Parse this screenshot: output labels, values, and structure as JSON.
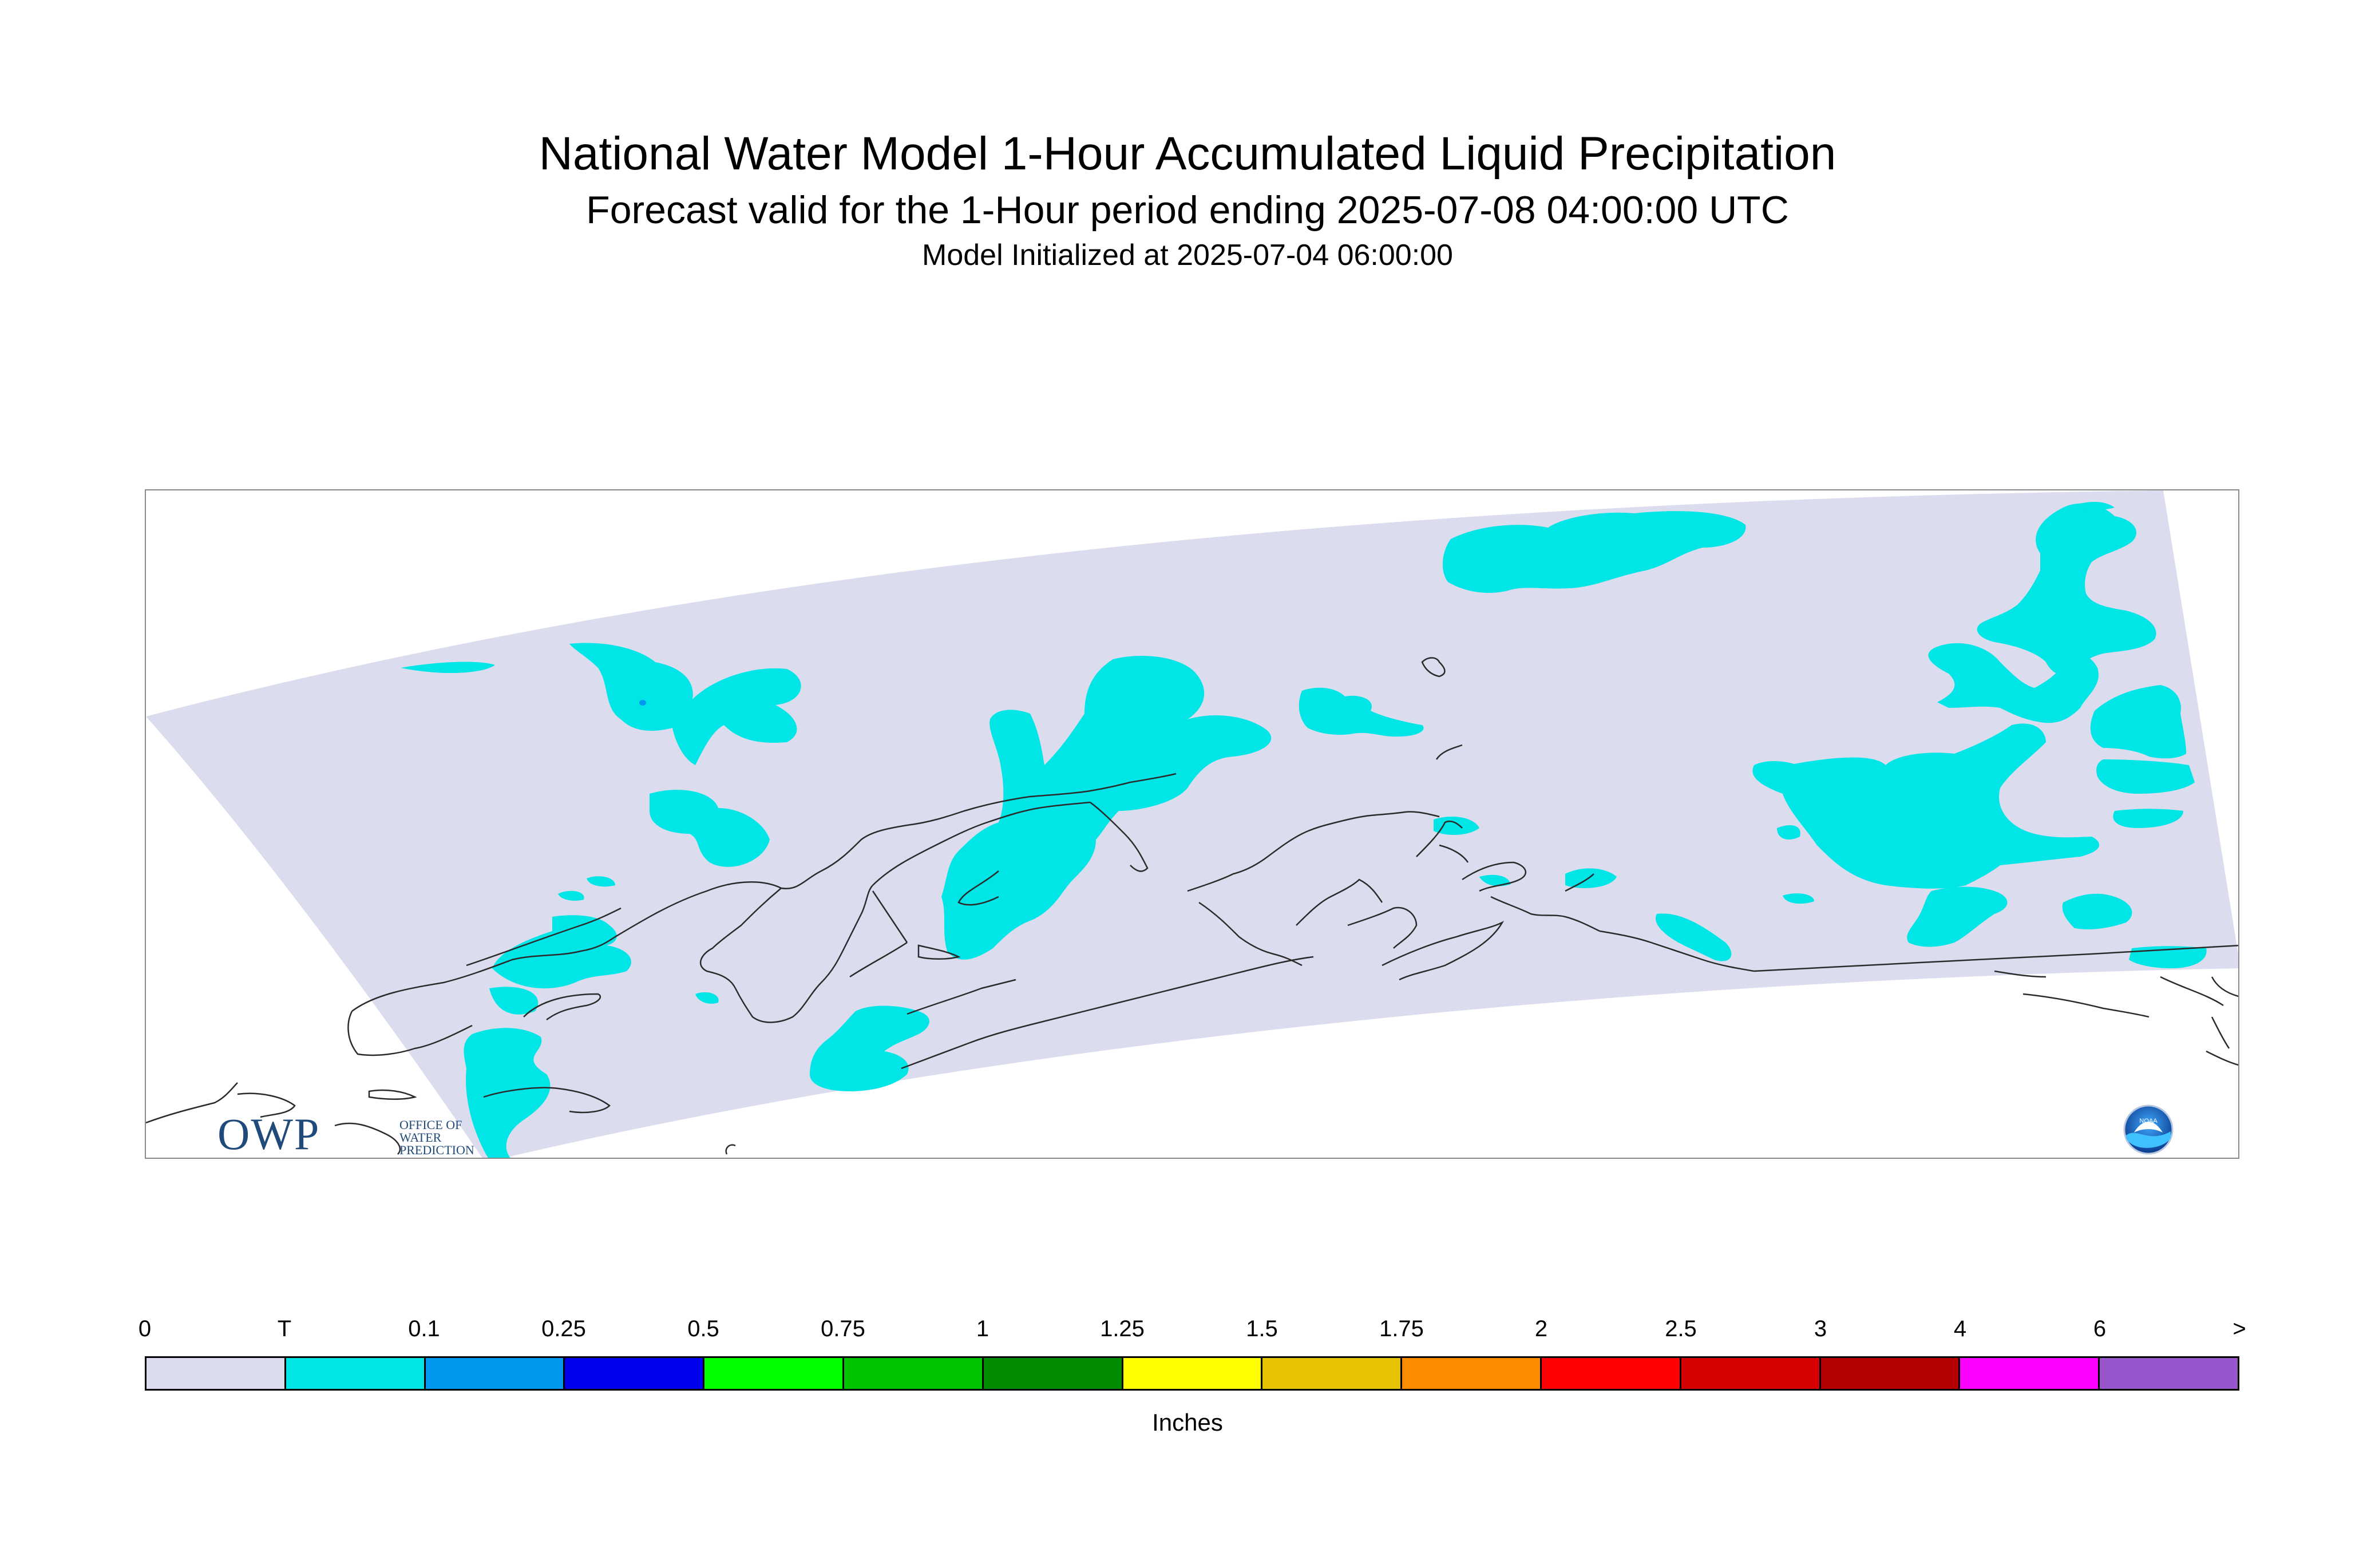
{
  "header": {
    "title": "National Water Model 1-Hour Accumulated Liquid Precipitation",
    "subtitle": "Forecast valid for the 1-Hour period ending 2025-07-08 04:00:00 UTC",
    "init": "Model Initialized at 2025-07-04 06:00:00"
  },
  "logos": {
    "owp_big": "OWP",
    "owp_small": [
      "OFFICE OF",
      "WATER",
      "PREDICTION"
    ],
    "noaa": "NOAA"
  },
  "colors": {
    "domain": "#dcdcef",
    "trace": "#00e5e5",
    "coast": "#2a2a2a"
  },
  "legend": {
    "ticks": [
      "0",
      "T",
      "0.1",
      "0.25",
      "0.5",
      "0.75",
      "1",
      "1.25",
      "1.5",
      "1.75",
      "2",
      "2.5",
      "3",
      "4",
      "6",
      ">"
    ],
    "colors": [
      "#dcdcef",
      "#00e5e5",
      "#0099ef",
      "#0000ee",
      "#00ff00",
      "#00c400",
      "#008b00",
      "#ffff00",
      "#e6c200",
      "#ff8c00",
      "#ff0000",
      "#d60000",
      "#b30000",
      "#ff00ff",
      "#9955cc"
    ],
    "units": "Inches"
  }
}
